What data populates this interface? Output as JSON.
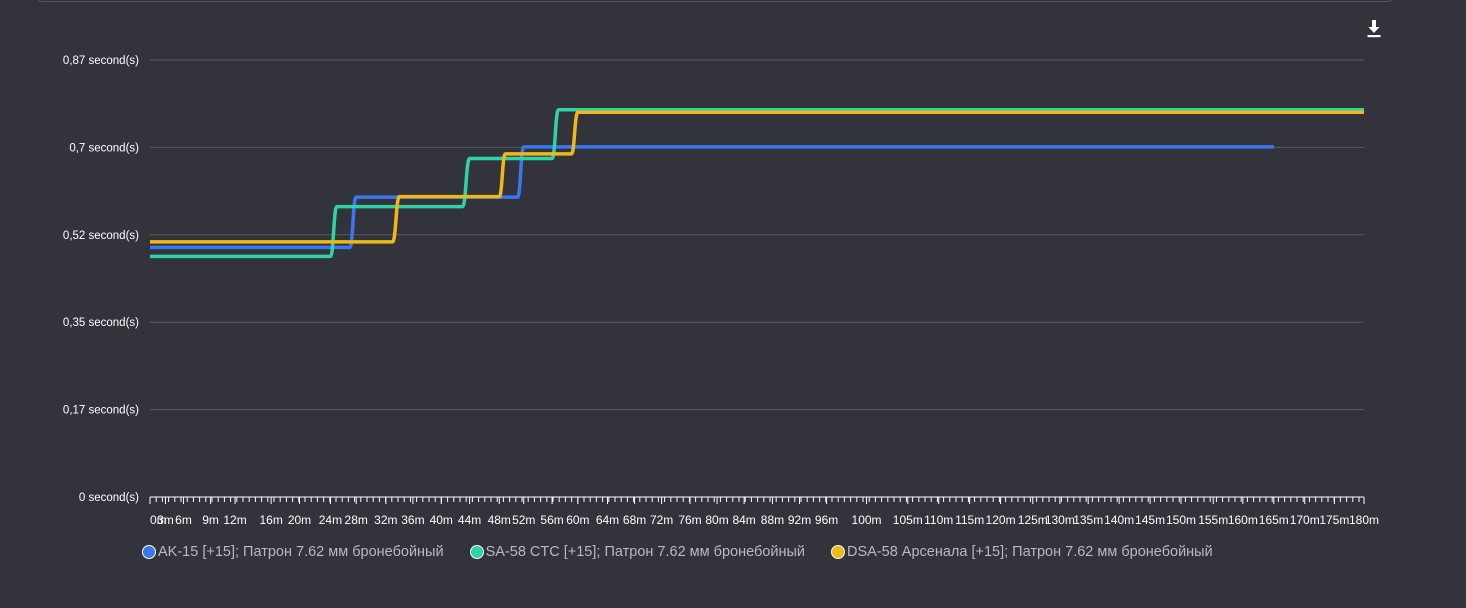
{
  "toolbar": {
    "download_icon": "download-icon"
  },
  "colors": {
    "background": "#32333b",
    "grid": "#5a5b63",
    "axis_text": "#ffffff",
    "legend_text": "#b9bac0"
  },
  "chart_data": {
    "type": "line",
    "title": "",
    "xlabel": "",
    "ylabel": "",
    "grid": true,
    "legend_position": "bottom-left",
    "y_ticks": [
      "0 second(s)",
      "0,17 second(s)",
      "0,35 second(s)",
      "0,52 second(s)",
      "0,7 second(s)",
      "0,87 second(s)"
    ],
    "ylim": [
      0,
      0.87
    ],
    "x_ticks": [
      "0m",
      "3m",
      "6m",
      "9m",
      "12m",
      "16m",
      "20m",
      "24m",
      "28m",
      "32m",
      "36m",
      "40m",
      "44m",
      "48m",
      "52m",
      "56m",
      "60m",
      "64m",
      "68m",
      "72m",
      "76m",
      "80m",
      "84m",
      "88m",
      "92m",
      "96m",
      "100m",
      "105m",
      "110m",
      "115m",
      "120m",
      "125m",
      "130m",
      "135m",
      "140m",
      "145m",
      "150m",
      "155m",
      "160m",
      "165m",
      "170m",
      "175m",
      "180m"
    ],
    "series": [
      {
        "name": "AK-15 [+15]; Патрон 7.62 мм бронебойный",
        "color": "#3a78f0",
        "points": [
          [
            0,
            0.497
          ],
          [
            27,
            0.497
          ],
          [
            28,
            0.597
          ],
          [
            51,
            0.597
          ],
          [
            52,
            0.697
          ],
          [
            165,
            0.697
          ]
        ]
      },
      {
        "name": "SA-58 CTC [+15]; Патрон 7.62 мм бронебойный",
        "color": "#2ed4a4",
        "points": [
          [
            0,
            0.479
          ],
          [
            24,
            0.479
          ],
          [
            25,
            0.578
          ],
          [
            43,
            0.578
          ],
          [
            44,
            0.674
          ],
          [
            56,
            0.674
          ],
          [
            57,
            0.771
          ],
          [
            180,
            0.771
          ]
        ]
      },
      {
        "name": "DSA-58 Арсенала [+15]; Патрон 7.62 мм бронебойный",
        "color": "#f1b81a",
        "points": [
          [
            0,
            0.508
          ],
          [
            33,
            0.508
          ],
          [
            34,
            0.598
          ],
          [
            48,
            0.598
          ],
          [
            49,
            0.683
          ],
          [
            59,
            0.683
          ],
          [
            60,
            0.766
          ],
          [
            180,
            0.766
          ]
        ]
      }
    ]
  }
}
